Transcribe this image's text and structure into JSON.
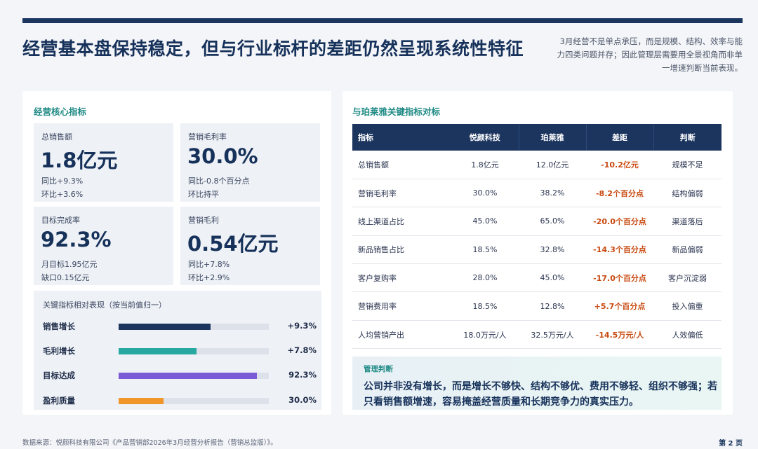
{
  "header": {
    "title": "经营基本盘保持稳定，但与行业标杆的差距仍然呈现系统性特征",
    "subtitle": "3月经营不是单点承压，而是规模、结构、效率与能力四类问题并存；因此管理层需要用全景视角而非单一增速判断当前表现。"
  },
  "left": {
    "section_title": "经营核心指标",
    "kpis": [
      {
        "label": "总销售额",
        "value": "1.8亿元",
        "note1": "同比+9.3%",
        "note2": "环比+3.6%"
      },
      {
        "label": "营销毛利率",
        "value": "30.0%",
        "note1": "同比-0.8个百分点",
        "note2": "环比持平"
      },
      {
        "label": "目标完成率",
        "value": "92.3%",
        "note1": "月目标1.95亿元",
        "note2": "缺口0.15亿元"
      },
      {
        "label": "营销毛利",
        "value": "0.54亿元",
        "note1": "同比+7.8%",
        "note2": "环比+2.9%"
      }
    ],
    "performance": {
      "title": "关键指标相对表现（按当前值归一）",
      "bars": [
        {
          "label": "销售增长",
          "value": "+9.3%",
          "fill": 0.61,
          "color": "#1b355f"
        },
        {
          "label": "毛利增长",
          "value": "+7.8%",
          "fill": 0.52,
          "color": "#27a8a0"
        },
        {
          "label": "目标达成",
          "value": "92.3%",
          "fill": 0.92,
          "color": "#7a5cd6"
        },
        {
          "label": "盈利质量",
          "value": "30.0%",
          "fill": 0.3,
          "color": "#f0962a"
        }
      ]
    }
  },
  "right": {
    "section_title": "与珀莱雅关键指标对标",
    "table": {
      "headers": [
        "指标",
        "悦颜科技",
        "珀莱雅",
        "差距",
        "判断"
      ],
      "rows": [
        [
          "总销售额",
          "1.8亿元",
          "12.0亿元",
          "-10.2亿元",
          "规模不足"
        ],
        [
          "营销毛利率",
          "30.0%",
          "38.2%",
          "-8.2个百分点",
          "结构偏弱"
        ],
        [
          "线上渠道占比",
          "45.0%",
          "65.0%",
          "-20.0个百分点",
          "渠道落后"
        ],
        [
          "新品销售占比",
          "18.5%",
          "32.8%",
          "-14.3个百分点",
          "新品偏弱"
        ],
        [
          "客户复购率",
          "28.0%",
          "45.0%",
          "-17.0个百分点",
          "客户沉淀弱"
        ],
        [
          "营销费用率",
          "18.5%",
          "12.8%",
          "+5.7个百分点",
          "投入偏重"
        ],
        [
          "人均营销产出",
          "18.0万元/人",
          "32.5万元/人",
          "-14.5万元/人",
          "人效偏低"
        ]
      ]
    },
    "management": {
      "label": "管理判断",
      "text": "公司并非没有增长，而是增长不够快、结构不够优、费用不够轻、组织不够强；若只看销售额增速，容易掩盖经营质量和长期竞争力的真实压力。"
    }
  },
  "footer": {
    "source": "数据来源：悦颜科技有限公司《产品营销部2026年3月经营分析报告（营销总监版）》。",
    "page": "第 2 页"
  }
}
